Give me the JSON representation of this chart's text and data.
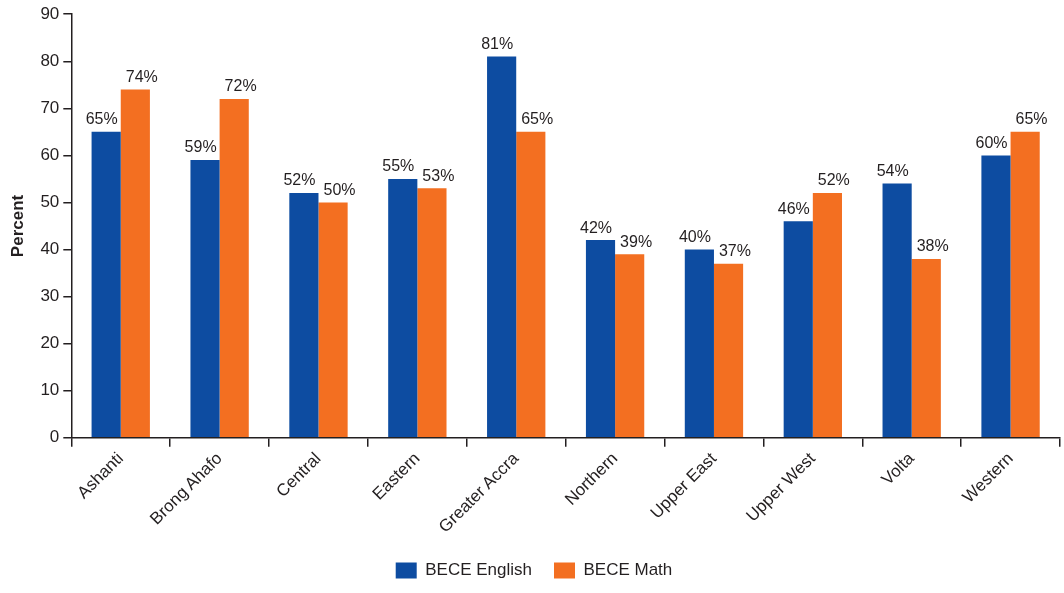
{
  "chart_data": {
    "type": "bar",
    "ylabel": "Percent",
    "categories": [
      "Ashanti",
      "Brong Ahafo",
      "Central",
      "Eastern",
      "Greater Accra",
      "Northern",
      "Upper East",
      "Upper West",
      "Volta",
      "Western"
    ],
    "series": [
      {
        "name": "BECE English",
        "color": "#0d4ca1",
        "values": [
          65,
          59,
          52,
          55,
          81,
          42,
          40,
          46,
          54,
          60
        ],
        "value_labels": [
          "65%",
          "59%",
          "52%",
          "55%",
          "81%",
          "42%",
          "40%",
          "46%",
          "54%",
          "60%"
        ]
      },
      {
        "name": "BECE Math",
        "color": "#f36f21",
        "values": [
          74,
          72,
          50,
          53,
          65,
          39,
          37,
          52,
          38,
          65
        ],
        "value_labels": [
          "74%",
          "72%",
          "50%",
          "53%",
          "65%",
          "39%",
          "37%",
          "52%",
          "38%",
          "65%"
        ]
      }
    ],
    "ylim": [
      0,
      90
    ],
    "yticks": [
      0,
      10,
      20,
      30,
      40,
      50,
      60,
      70,
      80,
      90
    ],
    "grid": false,
    "legend": "bottom"
  }
}
